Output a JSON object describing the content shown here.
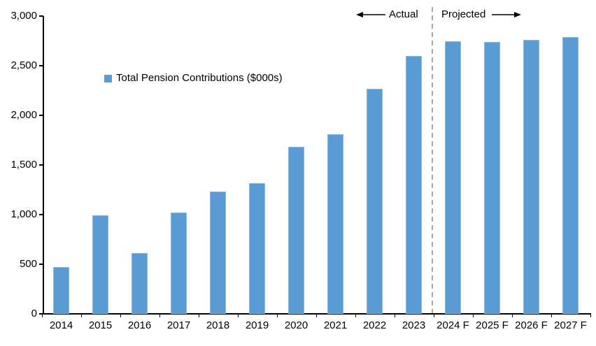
{
  "chart_data": {
    "type": "bar",
    "title": "",
    "legend": "Total Pension Contributions ($000s)",
    "legend_position": "upper-left-inside",
    "grid": false,
    "categories": [
      "2014",
      "2015",
      "2016",
      "2017",
      "2018",
      "2019",
      "2020",
      "2021",
      "2022",
      "2023",
      "2024 F",
      "2025 F",
      "2026 F",
      "2027 F"
    ],
    "series": [
      {
        "name": "Total Pension Contributions ($000s)",
        "values": [
          470,
          990,
          610,
          1020,
          1230,
          1320,
          1680,
          1810,
          2270,
          2600,
          2750,
          2740,
          2760,
          2790
        ]
      }
    ],
    "xlabel": "",
    "ylabel": "",
    "ylim": [
      0,
      3000
    ],
    "yticks": [
      {
        "label": "0",
        "value": 0
      },
      {
        "label": "500",
        "value": 500
      },
      {
        "label": "1,000",
        "value": 1000
      },
      {
        "label": "1,500",
        "value": 1500
      },
      {
        "label": "2,000",
        "value": 2000
      },
      {
        "label": "2,500",
        "value": 2500
      },
      {
        "label": "3,000",
        "value": 3000
      }
    ],
    "annotations": {
      "actual_label": "Actual",
      "projected_label": "Projected",
      "divider_between": [
        "2023",
        "2024 F"
      ]
    },
    "colors": {
      "bar": "#5B9BD5",
      "bar_edge": "#8FBADF",
      "divider": "#A6A6A6",
      "axis": "#000000",
      "text": "#000000"
    }
  }
}
